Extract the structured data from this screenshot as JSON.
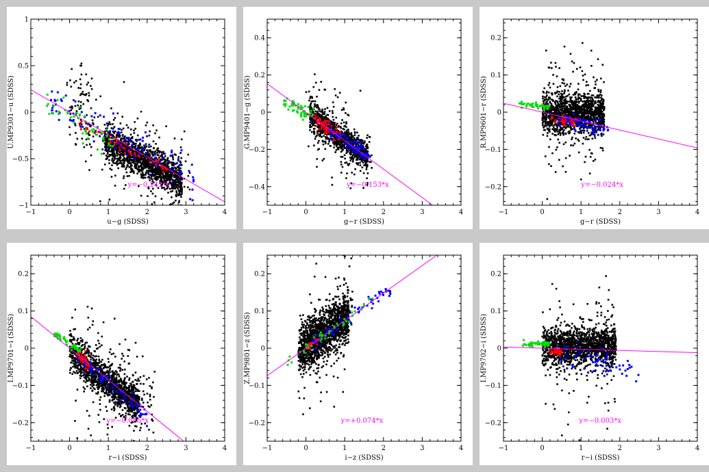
{
  "colors": {
    "background": "#c8c8c8",
    "panel": "#ffffff",
    "points_black": "#000000",
    "points_red": "#ff0000",
    "points_blue": "#0000ff",
    "points_green": "#00dd00",
    "fit_line": "#ff00ff"
  },
  "chart_data": [
    {
      "type": "scatter",
      "xlabel": "u−g (SDSS)",
      "ylabel": "U.MP9301−u (SDSS)",
      "xlim": [
        -1,
        4
      ],
      "ylim": [
        -1,
        1
      ],
      "xticks": [
        -1,
        0,
        1,
        2,
        3,
        4
      ],
      "xtick_labels": [
        "−1",
        "0",
        "1",
        "2",
        "3",
        "4"
      ],
      "yticks": [
        -1,
        -0.5,
        0,
        0.5,
        1
      ],
      "ytick_labels": [
        "−1",
        "−0.5",
        "0",
        "0.5",
        "1"
      ],
      "fit": {
        "slope": -0.241,
        "intercept": 0.0,
        "label": "y=−0.241*x",
        "label_x": 1.5,
        "label_y": -0.8
      },
      "clouds": [
        {
          "color": "black",
          "n": 1400,
          "x": [
            0.9,
            2.9
          ],
          "slope": -0.22,
          "intercept": -0.1,
          "spread": 0.09
        },
        {
          "color": "black",
          "n": 180,
          "x": [
            -0.1,
            3.1
          ],
          "slope": -0.22,
          "intercept": -0.1,
          "spread": 0.3
        },
        {
          "color": "black",
          "n": 60,
          "x": [
            0.0,
            0.6
          ],
          "slope": 0.0,
          "intercept": 0.05,
          "spread": 0.25
        },
        {
          "color": "red",
          "n": 60,
          "x": [
            0.2,
            2.6
          ],
          "slope": -0.21,
          "intercept": -0.08,
          "spread": 0.03
        },
        {
          "color": "blue",
          "n": 110,
          "x": [
            -0.5,
            3.2
          ],
          "slope": -0.22,
          "intercept": 0.0,
          "spread": 0.1
        },
        {
          "color": "green",
          "n": 50,
          "x": [
            -0.6,
            1.2
          ],
          "slope": -0.25,
          "intercept": -0.05,
          "spread": 0.09
        }
      ]
    },
    {
      "type": "scatter",
      "xlabel": "g−r (SDSS)",
      "ylabel": "G.MP9401−g (SDSS)",
      "xlim": [
        -1,
        4
      ],
      "ylim": [
        -0.5,
        0.5
      ],
      "xticks": [
        -1,
        0,
        1,
        2,
        3,
        4
      ],
      "xtick_labels": [
        "−1",
        "0",
        "1",
        "2",
        "3",
        "4"
      ],
      "yticks": [
        -0.4,
        -0.2,
        0,
        0.2,
        0.4
      ],
      "ytick_labels": [
        "−0.4",
        "−0.2",
        "0",
        "0.2",
        "0.4"
      ],
      "fit": {
        "slope": -0.153,
        "intercept": 0.0,
        "label": "y=−0.153*x",
        "label_x": 1.05,
        "label_y": -0.4
      },
      "clouds": [
        {
          "color": "black",
          "n": 900,
          "x": [
            0.1,
            1.6
          ],
          "slope": -0.15,
          "intercept": 0.0,
          "spread": 0.04
        },
        {
          "color": "black",
          "n": 140,
          "x": [
            0.0,
            1.7
          ],
          "slope": -0.15,
          "intercept": 0.0,
          "spread": 0.12
        },
        {
          "color": "red",
          "n": 70,
          "x": [
            0.2,
            0.9
          ],
          "slope": -0.15,
          "intercept": 0.0,
          "spread": 0.02
        },
        {
          "color": "blue",
          "n": 80,
          "x": [
            0.6,
            1.7
          ],
          "slope": -0.15,
          "intercept": 0.0,
          "spread": 0.02
        },
        {
          "color": "green",
          "n": 50,
          "x": [
            -0.6,
            0.2
          ],
          "slope": -0.1,
          "intercept": 0.0,
          "spread": 0.02
        }
      ]
    },
    {
      "type": "scatter",
      "xlabel": "g−r (SDSS)",
      "ylabel": "R.MP9601−r (SDSS)",
      "xlim": [
        -1,
        4
      ],
      "ylim": [
        -0.25,
        0.25
      ],
      "xticks": [
        -1,
        0,
        1,
        2,
        3,
        4
      ],
      "xtick_labels": [
        "−1",
        "0",
        "1",
        "2",
        "3",
        "4"
      ],
      "yticks": [
        -0.2,
        -0.1,
        0,
        0.1,
        0.2
      ],
      "ytick_labels": [
        "−0.2",
        "−0.1",
        "0",
        "0.1",
        "0.2"
      ],
      "fit": {
        "slope": -0.024,
        "intercept": 0.0,
        "label": "y=−0.024*x",
        "label_x": 1.0,
        "label_y": -0.2
      },
      "clouds": [
        {
          "color": "black",
          "n": 1300,
          "x": [
            0.0,
            1.6
          ],
          "slope": 0.0,
          "intercept": -0.005,
          "spread": 0.025
        },
        {
          "color": "black",
          "n": 220,
          "x": [
            0.0,
            1.6
          ],
          "slope": 0.0,
          "intercept": 0.0,
          "spread": 0.08
        },
        {
          "color": "red",
          "n": 50,
          "x": [
            0.2,
            0.9
          ],
          "slope": -0.02,
          "intercept": -0.01,
          "spread": 0.006
        },
        {
          "color": "blue",
          "n": 70,
          "x": [
            0.4,
            1.7
          ],
          "slope": -0.02,
          "intercept": -0.01,
          "spread": 0.01
        },
        {
          "color": "green",
          "n": 45,
          "x": [
            -0.6,
            0.2
          ],
          "slope": -0.01,
          "intercept": 0.015,
          "spread": 0.004
        }
      ]
    },
    {
      "type": "scatter",
      "xlabel": "r−i (SDSS)",
      "ylabel": "I.MP9701−i (SDSS)",
      "xlim": [
        -1,
        4
      ],
      "ylim": [
        -0.25,
        0.25
      ],
      "xticks": [
        -1,
        0,
        1,
        2,
        3,
        4
      ],
      "xtick_labels": [
        "−1",
        "0",
        "1",
        "2",
        "3",
        "4"
      ],
      "yticks": [
        -0.2,
        -0.1,
        0,
        0.1,
        0.2
      ],
      "ytick_labels": [
        "−0.2",
        "−0.1",
        "0",
        "0.1",
        "0.2"
      ],
      "fit": {
        "slope": -0.085,
        "intercept": 0.0,
        "label": "y=−0.085*x",
        "label_x": 0.95,
        "label_y": -0.2
      },
      "clouds": [
        {
          "color": "black",
          "n": 1300,
          "x": [
            0.0,
            1.8
          ],
          "slope": -0.085,
          "intercept": -0.005,
          "spread": 0.025
        },
        {
          "color": "black",
          "n": 220,
          "x": [
            0.0,
            2.2
          ],
          "slope": -0.085,
          "intercept": 0.0,
          "spread": 0.08
        },
        {
          "color": "red",
          "n": 45,
          "x": [
            0.15,
            0.5
          ],
          "slope": -0.08,
          "intercept": -0.005,
          "spread": 0.008
        },
        {
          "color": "blue",
          "n": 70,
          "x": [
            0.2,
            2.0
          ],
          "slope": -0.085,
          "intercept": -0.01,
          "spread": 0.012
        },
        {
          "color": "green",
          "n": 50,
          "x": [
            -0.4,
            0.3
          ],
          "slope": -0.07,
          "intercept": 0.01,
          "spread": 0.006
        }
      ]
    },
    {
      "type": "scatter",
      "xlabel": "i−z (SDSS)",
      "ylabel": "Z.MP9801−z (SDSS)",
      "xlim": [
        -1,
        4
      ],
      "ylim": [
        -0.25,
        0.25
      ],
      "xticks": [
        -1,
        0,
        1,
        2,
        3,
        4
      ],
      "xtick_labels": [
        "−1",
        "0",
        "1",
        "2",
        "3",
        "4"
      ],
      "yticks": [
        -0.2,
        -0.1,
        0,
        0.1,
        0.2
      ],
      "ytick_labels": [
        "−0.2",
        "−0.1",
        "0",
        "0.1",
        "0.2"
      ],
      "fit": {
        "slope": 0.074,
        "intercept": 0.0,
        "label": "y=+0.074*x",
        "label_x": 0.9,
        "label_y": -0.2
      },
      "clouds": [
        {
          "color": "black",
          "n": 1500,
          "x": [
            -0.2,
            1.1
          ],
          "slope": 0.074,
          "intercept": 0.005,
          "spread": 0.03
        },
        {
          "color": "black",
          "n": 200,
          "x": [
            -0.2,
            1.2
          ],
          "slope": 0.074,
          "intercept": 0.0,
          "spread": 0.08
        },
        {
          "color": "red",
          "n": 30,
          "x": [
            0.0,
            0.3
          ],
          "slope": 0.07,
          "intercept": 0.0,
          "spread": 0.004
        },
        {
          "color": "blue",
          "n": 60,
          "x": [
            0.0,
            2.2
          ],
          "slope": 0.074,
          "intercept": 0.0,
          "spread": 0.01
        },
        {
          "color": "green",
          "n": 45,
          "x": [
            -0.5,
            1.8
          ],
          "slope": 0.074,
          "intercept": 0.0,
          "spread": 0.008
        }
      ]
    },
    {
      "type": "scatter",
      "xlabel": "r−i (SDSS)",
      "ylabel": "I.MP9702−i (SDSS)",
      "xlim": [
        -1,
        4
      ],
      "ylim": [
        -0.25,
        0.25
      ],
      "xticks": [
        -1,
        0,
        1,
        2,
        3,
        4
      ],
      "xtick_labels": [
        "−1",
        "0",
        "1",
        "2",
        "3",
        "4"
      ],
      "yticks": [
        -0.2,
        -0.1,
        0,
        0.1,
        0.2
      ],
      "ytick_labels": [
        "−0.2",
        "−0.1",
        "0",
        "0.1",
        "0.2"
      ],
      "fit": {
        "slope": -0.003,
        "intercept": 0.0,
        "label": "y=−0.003*x",
        "label_x": 0.95,
        "label_y": -0.2
      },
      "clouds": [
        {
          "color": "black",
          "n": 1400,
          "x": [
            0.0,
            1.9
          ],
          "slope": 0.0,
          "intercept": 0.005,
          "spread": 0.025
        },
        {
          "color": "black",
          "n": 200,
          "x": [
            0.0,
            1.9
          ],
          "slope": 0.0,
          "intercept": 0.0,
          "spread": 0.08
        },
        {
          "color": "red",
          "n": 40,
          "x": [
            0.2,
            0.5
          ],
          "slope": 0.0,
          "intercept": -0.01,
          "spread": 0.005
        },
        {
          "color": "blue",
          "n": 60,
          "x": [
            0.3,
            2.5
          ],
          "slope": -0.02,
          "intercept": -0.01,
          "spread": 0.015
        },
        {
          "color": "green",
          "n": 45,
          "x": [
            -0.5,
            0.2
          ],
          "slope": 0.0,
          "intercept": 0.01,
          "spread": 0.004
        }
      ]
    }
  ]
}
